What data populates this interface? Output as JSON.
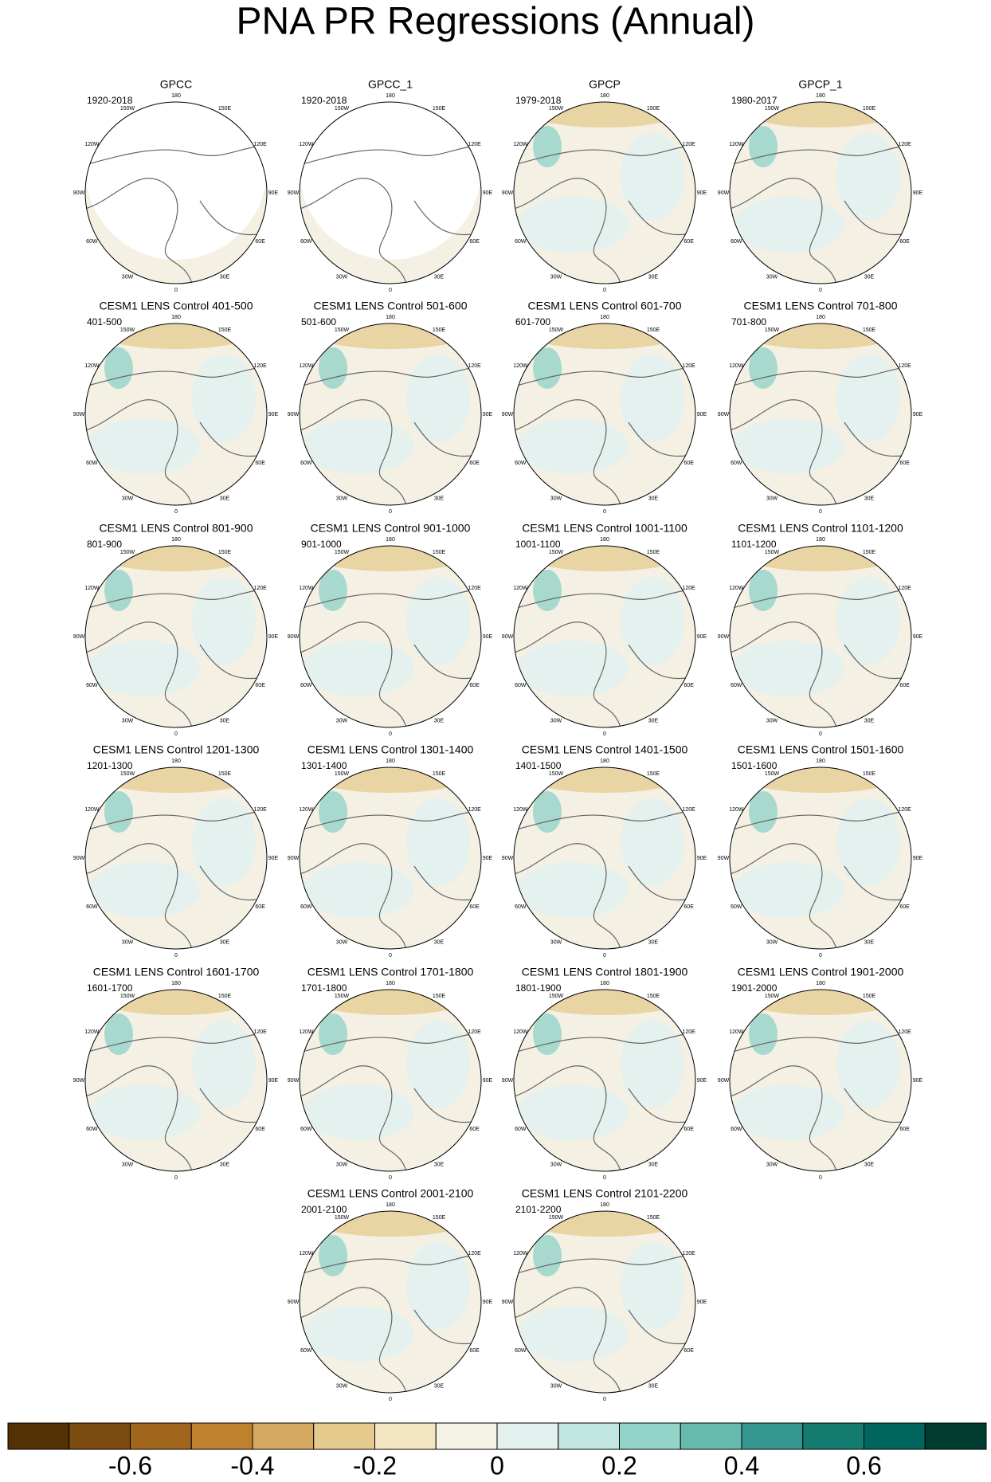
{
  "chart_data": {
    "type": "polar-map-panels",
    "title": "PNA PR Regressions (Annual)",
    "lon_labels": [
      "180",
      "150E",
      "120E",
      "90E",
      "60E",
      "30E",
      "0",
      "30W",
      "60W",
      "90W",
      "120W",
      "150W"
    ],
    "panels": [
      {
        "title": "GPCC",
        "period": "1920-2018"
      },
      {
        "title": "GPCC_1",
        "period": "1920-2018"
      },
      {
        "title": "GPCP",
        "period": "1979-2018"
      },
      {
        "title": "GPCP_1",
        "period": "1980-2017"
      },
      {
        "title": "CESM1 LENS Control 401-500",
        "period": "401-500"
      },
      {
        "title": "CESM1 LENS Control 501-600",
        "period": "501-600"
      },
      {
        "title": "CESM1 LENS Control 601-700",
        "period": "601-700"
      },
      {
        "title": "CESM1 LENS Control 701-800",
        "period": "701-800"
      },
      {
        "title": "CESM1 LENS Control 801-900",
        "period": "801-900"
      },
      {
        "title": "CESM1 LENS Control 901-1000",
        "period": "901-1000"
      },
      {
        "title": "CESM1 LENS Control 1001-1100",
        "period": "1001-1100"
      },
      {
        "title": "CESM1 LENS Control 1101-1200",
        "period": "1101-1200"
      },
      {
        "title": "CESM1 LENS Control 1201-1300",
        "period": "1201-1300"
      },
      {
        "title": "CESM1 LENS Control 1301-1400",
        "period": "1301-1400"
      },
      {
        "title": "CESM1 LENS Control 1401-1500",
        "period": "1401-1500"
      },
      {
        "title": "CESM1 LENS Control 1501-1600",
        "period": "1501-1600"
      },
      {
        "title": "CESM1 LENS Control 1601-1700",
        "period": "1601-1700"
      },
      {
        "title": "CESM1 LENS Control 1701-1800",
        "period": "1701-1800"
      },
      {
        "title": "CESM1 LENS Control 1801-1900",
        "period": "1801-1900"
      },
      {
        "title": "CESM1 LENS Control 1901-2000",
        "period": "1901-2000"
      },
      {
        "title": "CESM1 LENS Control 2001-2100",
        "period": "2001-2100"
      },
      {
        "title": "CESM1 LENS Control 2101-2200",
        "period": "2101-2200"
      }
    ],
    "colorbar": {
      "colors": [
        "#543005",
        "#7a4a0e",
        "#a0661d",
        "#bf812d",
        "#d4a95f",
        "#e6cb8f",
        "#f4e6c2",
        "#f5f2e6",
        "#e3f1ee",
        "#c0e6df",
        "#93d3c8",
        "#65b9ad",
        "#35978f",
        "#137b70",
        "#01665e",
        "#003c30"
      ],
      "xlim": [
        -0.8,
        0.8
      ],
      "xticks": [
        -0.6,
        -0.4,
        -0.2,
        0,
        0.2,
        0.4,
        0.6
      ]
    }
  }
}
